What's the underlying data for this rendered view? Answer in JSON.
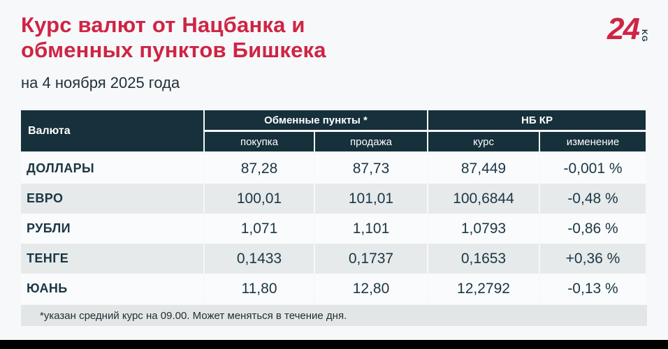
{
  "page": {
    "title_line1": "Курс валют от Нацбанка и",
    "title_line2": "обменных пунктов Бишкека",
    "subtitle": "на 4 ноября 2025 года",
    "footnote": "*указан средний курс на 09.00. Может меняться в течение дня."
  },
  "logo": {
    "number": "24",
    "suffix": "KG"
  },
  "colors": {
    "accent_red": "#cf2444",
    "header_bg": "#16303c",
    "text_navy": "#1b3644",
    "row_light": "#fafbfc",
    "row_alt": "#e6eaeb",
    "footnote_bg": "#e3e6e6",
    "page_bg": "#f6f8f9",
    "bottom_bar": "#000000"
  },
  "table": {
    "col_currency": "Валюта",
    "group_exchange": "Обменные пункты *",
    "group_nbkr": "НБ КР",
    "sub_buy": "покупка",
    "sub_sell": "продажа",
    "sub_rate": "курс",
    "sub_change": "изменение",
    "rows": [
      {
        "name": "ДОЛЛАРЫ",
        "buy": "87,28",
        "sell": "87,73",
        "rate": "87,449",
        "change": "-0,001 %"
      },
      {
        "name": "ЕВРО",
        "buy": "100,01",
        "sell": "101,01",
        "rate": "100,6844",
        "change": "-0,48 %"
      },
      {
        "name": "РУБЛИ",
        "buy": "1,071",
        "sell": "1,101",
        "rate": "1,0793",
        "change": "-0,86 %"
      },
      {
        "name": "ТЕНГЕ",
        "buy": "0,1433",
        "sell": "0,1737",
        "rate": "0,1653",
        "change": "+0,36 %"
      },
      {
        "name": "ЮАНЬ",
        "buy": "11,80",
        "sell": "12,80",
        "rate": "12,2792",
        "change": "-0,13 %"
      }
    ]
  },
  "chart_data": {
    "type": "table",
    "title": "Курс валют от Нацбанка и обменных пунктов Бишкека",
    "subtitle": "на 4 ноября 2025 года",
    "columns": [
      "Валюта",
      "Обменные пункты: покупка",
      "Обменные пункты: продажа",
      "НБ КР: курс",
      "НБ КР: изменение"
    ],
    "rows": [
      [
        "ДОЛЛАРЫ",
        87.28,
        87.73,
        87.449,
        "-0,001 %"
      ],
      [
        "ЕВРО",
        100.01,
        101.01,
        100.6844,
        "-0,48 %"
      ],
      [
        "РУБЛИ",
        1.071,
        1.101,
        1.0793,
        "-0,86 %"
      ],
      [
        "ТЕНГЕ",
        0.1433,
        0.1737,
        0.1653,
        "+0,36 %"
      ],
      [
        "ЮАНЬ",
        11.8,
        12.8,
        12.2792,
        "-0,13 %"
      ]
    ],
    "footnote": "*указан средний курс на 09.00. Может меняться в течение дня."
  }
}
